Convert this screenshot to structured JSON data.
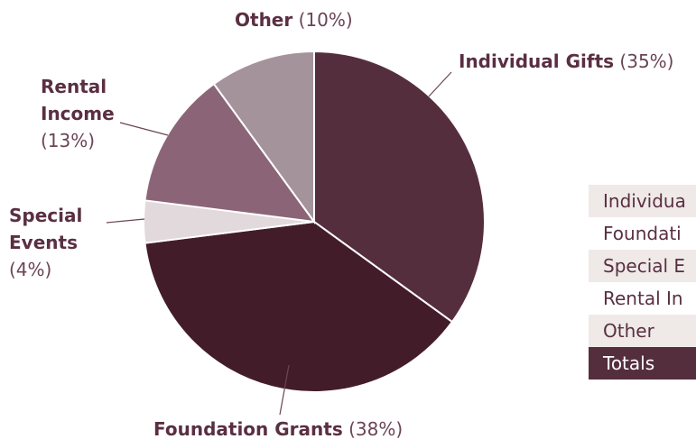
{
  "chart_data": {
    "type": "pie",
    "categories": [
      "Individual Gifts",
      "Foundation Grants",
      "Special Events",
      "Rental Income",
      "Other"
    ],
    "values": [
      35,
      38,
      4,
      13,
      10
    ],
    "value_labels": [
      "(35%)",
      "(38%)",
      "(4%)",
      "(13%)",
      "(10%)"
    ],
    "colors": [
      "#552e3e",
      "#431c2a",
      "#e2d9dd",
      "#8b6577",
      "#a5939c"
    ]
  },
  "table": {
    "rows": [
      "Individua",
      "Foundati",
      "Special E",
      "Rental In",
      "Other",
      "Totals"
    ]
  }
}
